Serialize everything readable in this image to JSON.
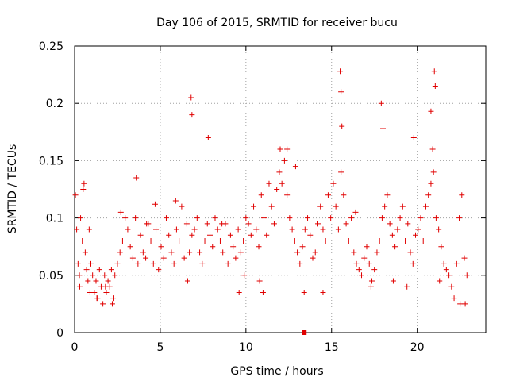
{
  "chart_data": {
    "type": "scatter",
    "title": "Day 106 of 2015, SRMTID for receiver bucu",
    "xlabel": "GPS time / hours",
    "ylabel": "SRMTID / TECUs",
    "xlim": [
      0,
      24
    ],
    "ylim": [
      0,
      0.25
    ],
    "x_ticks": [
      0,
      5,
      10,
      15,
      20
    ],
    "x_tick_labels": [
      "0",
      "5",
      "10",
      "15",
      "20"
    ],
    "y_ticks": [
      0,
      0.05,
      0.1,
      0.15,
      0.2,
      0.25
    ],
    "y_tick_labels": [
      "0",
      "0.05",
      "0.1",
      "0.15",
      "0.2",
      "0.25"
    ],
    "grid": true,
    "marker": "plus",
    "series": [
      {
        "name": "SRMTID",
        "color": "#e00000",
        "x": [
          0.05,
          0.12,
          0.2,
          0.28,
          0.35,
          0.45,
          0.55,
          0.62,
          0.7,
          0.78,
          0.85,
          0.95,
          1.05,
          1.15,
          1.25,
          1.35,
          1.45,
          1.55,
          1.65,
          1.75,
          1.85,
          1.95,
          2.05,
          2.15,
          2.25,
          2.35,
          2.5,
          2.65,
          2.8,
          2.95,
          3.1,
          3.25,
          3.4,
          3.55,
          3.7,
          3.85,
          4.0,
          4.15,
          4.3,
          4.45,
          4.6,
          4.75,
          4.9,
          5.05,
          5.2,
          5.35,
          5.5,
          5.65,
          5.8,
          5.95,
          6.1,
          6.25,
          6.4,
          6.55,
          6.7,
          6.85,
          7.0,
          7.15,
          7.3,
          7.45,
          7.6,
          7.75,
          7.9,
          8.05,
          8.2,
          8.35,
          8.5,
          8.65,
          8.8,
          8.95,
          9.1,
          9.25,
          9.4,
          9.55,
          9.7,
          9.85,
          10.0,
          10.15,
          10.3,
          10.45,
          10.6,
          10.75,
          10.9,
          11.05,
          11.2,
          11.35,
          11.5,
          11.65,
          11.8,
          11.95,
          12.1,
          12.25,
          12.4,
          12.55,
          12.7,
          12.85,
          13.0,
          13.15,
          13.3,
          13.45,
          13.6,
          13.75,
          13.9,
          14.05,
          14.2,
          14.35,
          14.5,
          14.65,
          14.8,
          14.95,
          15.1,
          15.25,
          15.4,
          15.55,
          15.7,
          15.85,
          16.0,
          16.15,
          16.3,
          16.45,
          16.6,
          16.75,
          16.9,
          17.05,
          17.2,
          17.35,
          17.5,
          17.65,
          17.8,
          17.95,
          18.1,
          18.25,
          18.4,
          18.55,
          18.7,
          18.85,
          19.0,
          19.15,
          19.3,
          19.45,
          19.6,
          19.75,
          19.9,
          20.05,
          20.2,
          20.35,
          20.5,
          20.65,
          20.8,
          20.95,
          21.1,
          21.25,
          21.4,
          21.55,
          21.7,
          21.85,
          22.0,
          22.15,
          22.3,
          22.45,
          22.6,
          22.75,
          22.9,
          0.5,
          1.8,
          3.6,
          6.8,
          6.85,
          7.8,
          12.0,
          15.5,
          15.55,
          15.6,
          17.9,
          18.0,
          19.8,
          20.8,
          20.9,
          21.0,
          21.05,
          9.6,
          13.4,
          11.0,
          12.4,
          4.7,
          2.2,
          0.3,
          0.9,
          1.3,
          2.7,
          4.2,
          5.9,
          6.6,
          8.6,
          9.9,
          10.8,
          12.9,
          14.5,
          16.4,
          17.3,
          18.6,
          19.4,
          21.3,
          22.5,
          22.8
        ],
        "y": [
          0.12,
          0.09,
          0.06,
          0.05,
          0.1,
          0.08,
          0.13,
          0.07,
          0.055,
          0.045,
          0.09,
          0.06,
          0.05,
          0.035,
          0.045,
          0.03,
          0.055,
          0.04,
          0.025,
          0.05,
          0.035,
          0.045,
          0.04,
          0.055,
          0.03,
          0.05,
          0.06,
          0.07,
          0.08,
          0.1,
          0.09,
          0.075,
          0.065,
          0.1,
          0.06,
          0.085,
          0.07,
          0.065,
          0.095,
          0.08,
          0.06,
          0.09,
          0.055,
          0.075,
          0.065,
          0.1,
          0.085,
          0.07,
          0.06,
          0.09,
          0.08,
          0.11,
          0.065,
          0.095,
          0.07,
          0.085,
          0.09,
          0.1,
          0.07,
          0.06,
          0.08,
          0.095,
          0.085,
          0.075,
          0.1,
          0.09,
          0.08,
          0.07,
          0.095,
          0.06,
          0.085,
          0.075,
          0.065,
          0.09,
          0.07,
          0.08,
          0.1,
          0.095,
          0.085,
          0.11,
          0.09,
          0.075,
          0.12,
          0.1,
          0.085,
          0.13,
          0.11,
          0.095,
          0.125,
          0.14,
          0.13,
          0.15,
          0.12,
          0.1,
          0.09,
          0.08,
          0.07,
          0.06,
          0.075,
          0.09,
          0.1,
          0.085,
          0.065,
          0.07,
          0.095,
          0.11,
          0.09,
          0.08,
          0.12,
          0.1,
          0.13,
          0.11,
          0.09,
          0.14,
          0.12,
          0.095,
          0.08,
          0.1,
          0.07,
          0.06,
          0.055,
          0.05,
          0.065,
          0.075,
          0.06,
          0.045,
          0.055,
          0.07,
          0.08,
          0.1,
          0.11,
          0.12,
          0.095,
          0.085,
          0.075,
          0.09,
          0.1,
          0.11,
          0.08,
          0.095,
          0.07,
          0.06,
          0.085,
          0.09,
          0.1,
          0.08,
          0.11,
          0.12,
          0.13,
          0.14,
          0.1,
          0.09,
          0.075,
          0.06,
          0.055,
          0.05,
          0.04,
          0.03,
          0.06,
          0.1,
          0.12,
          0.065,
          0.05,
          0.125,
          0.04,
          0.135,
          0.205,
          0.19,
          0.17,
          0.16,
          0.228,
          0.21,
          0.18,
          0.2,
          0.178,
          0.17,
          0.193,
          0.16,
          0.228,
          0.215,
          0.035,
          0.035,
          0.035,
          0.16,
          0.112,
          0.025,
          0.04,
          0.035,
          0.03,
          0.105,
          0.095,
          0.115,
          0.045,
          0.095,
          0.05,
          0.045,
          0.145,
          0.035,
          0.105,
          0.04,
          0.045,
          0.04,
          0.045,
          0.025,
          0.025
        ]
      }
    ],
    "extra_marker": {
      "x": 13.4,
      "y": 0,
      "shape": "square"
    }
  }
}
